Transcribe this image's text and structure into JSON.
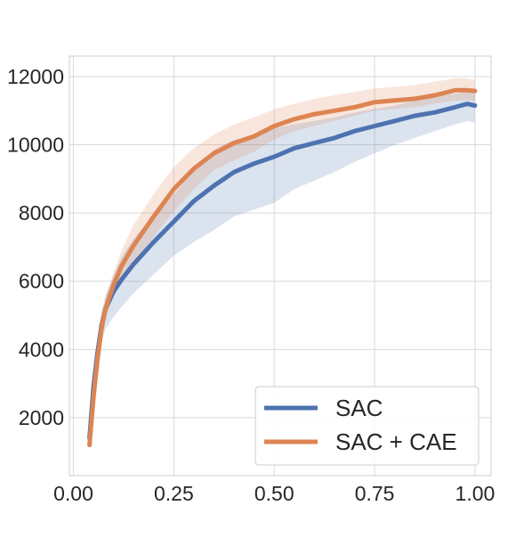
{
  "chart_data": {
    "type": "line",
    "title": "",
    "xlabel": "",
    "ylabel": "",
    "xlim": [
      -0.01,
      1.04
    ],
    "ylim": [
      300,
      12600
    ],
    "x_ticks": [
      0.0,
      0.25,
      0.5,
      0.75,
      1.0
    ],
    "x_tick_labels": [
      "0.00",
      "0.25",
      "0.50",
      "0.75",
      "1.00"
    ],
    "y_ticks": [
      2000,
      4000,
      6000,
      8000,
      10000,
      12000
    ],
    "y_tick_labels": [
      "2000",
      "4000",
      "6000",
      "8000",
      "10000",
      "12000"
    ],
    "grid": true,
    "legend_position": "bottom-right",
    "series": [
      {
        "name": "SAC",
        "color": "#4c72b0",
        "x": [
          0.04,
          0.05,
          0.06,
          0.07,
          0.08,
          0.1,
          0.12,
          0.15,
          0.2,
          0.25,
          0.3,
          0.35,
          0.4,
          0.45,
          0.5,
          0.55,
          0.6,
          0.65,
          0.7,
          0.75,
          0.8,
          0.85,
          0.9,
          0.95,
          0.98,
          1.0
        ],
        "y": [
          1400,
          2900,
          3900,
          4700,
          5200,
          5700,
          6050,
          6500,
          7150,
          7750,
          8350,
          8800,
          9200,
          9450,
          9650,
          9900,
          10050,
          10200,
          10400,
          10550,
          10700,
          10850,
          10950,
          11100,
          11200,
          11150
        ],
        "lower": [
          1100,
          2500,
          3500,
          4200,
          4600,
          4950,
          5250,
          5650,
          6200,
          6750,
          7150,
          7500,
          7900,
          8100,
          8300,
          8700,
          8950,
          9200,
          9500,
          9750,
          10000,
          10200,
          10400,
          10600,
          10700,
          10650
        ],
        "upper": [
          1700,
          3300,
          4300,
          5100,
          5600,
          6200,
          6700,
          7250,
          7950,
          8550,
          9250,
          9850,
          10150,
          10250,
          10500,
          10600,
          10700,
          10800,
          10950,
          11050,
          11150,
          11300,
          11450,
          11500,
          11550,
          11500
        ]
      },
      {
        "name": "SAC + CAE",
        "color": "#dd8452",
        "x": [
          0.04,
          0.05,
          0.06,
          0.07,
          0.08,
          0.1,
          0.12,
          0.15,
          0.2,
          0.25,
          0.3,
          0.35,
          0.4,
          0.45,
          0.5,
          0.55,
          0.6,
          0.65,
          0.7,
          0.75,
          0.8,
          0.85,
          0.9,
          0.95,
          0.98,
          1.0
        ],
        "y": [
          1200,
          2600,
          3700,
          4600,
          5200,
          5900,
          6450,
          7050,
          7900,
          8700,
          9300,
          9750,
          10050,
          10250,
          10550,
          10750,
          10900,
          11000,
          11100,
          11250,
          11300,
          11350,
          11450,
          11600,
          11600,
          11580
        ],
        "lower": [
          1000,
          2300,
          3400,
          4300,
          4900,
          5550,
          6000,
          6500,
          7300,
          8050,
          8700,
          9250,
          9550,
          9800,
          10150,
          10400,
          10550,
          10700,
          10850,
          11000,
          11050,
          11100,
          11200,
          11300,
          11300,
          11300
        ],
        "upper": [
          1400,
          2900,
          4000,
          4900,
          5500,
          6250,
          6900,
          7650,
          8550,
          9350,
          9900,
          10300,
          10600,
          10800,
          11050,
          11200,
          11350,
          11450,
          11550,
          11650,
          11700,
          11750,
          11850,
          11950,
          11950,
          11900
        ]
      }
    ]
  }
}
